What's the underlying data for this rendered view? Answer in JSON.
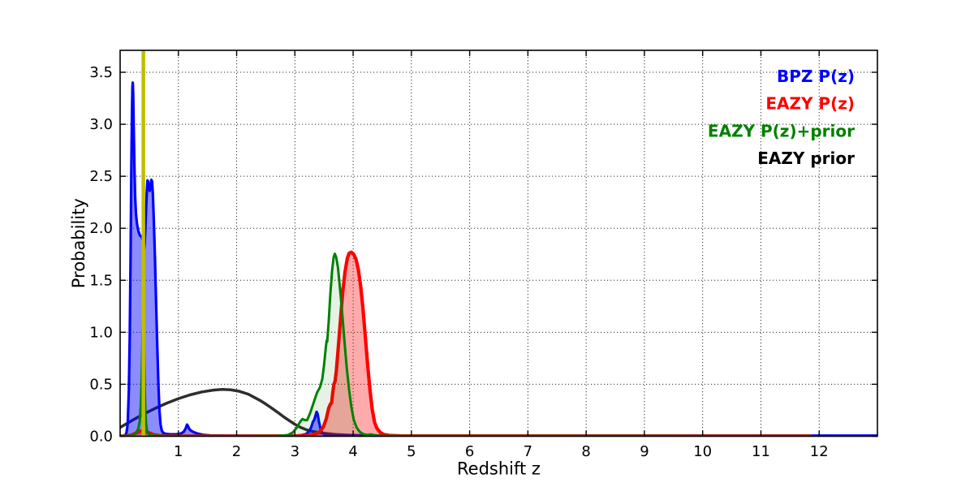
{
  "figure": {
    "background": "#ffffff",
    "border_color": "#000000",
    "grid_color": "#333333"
  },
  "chart_data": {
    "type": "line",
    "title": "",
    "xlabel": "Redshift z",
    "ylabel": "Probability",
    "xlim": [
      0,
      13
    ],
    "ylim": [
      0,
      3.711
    ],
    "grid": {
      "show": true,
      "style": "dotted"
    },
    "xticks": [
      1,
      2,
      3,
      4,
      5,
      6,
      7,
      8,
      9,
      10,
      11,
      12
    ],
    "xtick_labels": [
      "1",
      "2",
      "3",
      "4",
      "5",
      "6",
      "7",
      "8",
      "9",
      "10",
      "11",
      "12"
    ],
    "yticks": [
      0,
      0.5,
      1.0,
      1.5,
      2.0,
      2.5,
      3.0,
      3.5
    ],
    "ytick_labels": [
      "0.0",
      "0.5",
      "1.0",
      "1.5",
      "2.0",
      "2.5",
      "3.0",
      "3.5"
    ],
    "legend": {
      "position": "top-right",
      "entries": [
        {
          "label": "BPZ P(z)",
          "color": "#0000ff"
        },
        {
          "label": "EAZY P(z)",
          "color": "#ff0000"
        },
        {
          "label": "EAZY P(z)+prior",
          "color": "#008000"
        },
        {
          "label": "EAZY prior",
          "color": "#000000"
        }
      ]
    },
    "marker_line": {
      "x": 0.399,
      "color": "#bfbf00",
      "width": 4.5
    },
    "series": [
      {
        "name": "EAZY prior",
        "color": "#2e2e2e",
        "line_width": 3.5,
        "fill": null,
        "points": [
          [
            0.0,
            0.085
          ],
          [
            0.2,
            0.15
          ],
          [
            0.4,
            0.213
          ],
          [
            0.6,
            0.268
          ],
          [
            0.8,
            0.318
          ],
          [
            1.0,
            0.362
          ],
          [
            1.2,
            0.398
          ],
          [
            1.4,
            0.426
          ],
          [
            1.6,
            0.444
          ],
          [
            1.75,
            0.451
          ],
          [
            1.9,
            0.447
          ],
          [
            2.05,
            0.432
          ],
          [
            2.2,
            0.405
          ],
          [
            2.3,
            0.375
          ],
          [
            2.4,
            0.345
          ],
          [
            2.5,
            0.31
          ],
          [
            2.6,
            0.272
          ],
          [
            2.7,
            0.232
          ],
          [
            2.8,
            0.19
          ],
          [
            2.9,
            0.152
          ],
          [
            3.0,
            0.115
          ],
          [
            3.1,
            0.085
          ],
          [
            3.2,
            0.062
          ],
          [
            3.3,
            0.047
          ],
          [
            3.4,
            0.036
          ],
          [
            3.55,
            0.026
          ],
          [
            3.7,
            0.018
          ],
          [
            3.9,
            0.012
          ],
          [
            4.1,
            0.009
          ],
          [
            4.4,
            0.006
          ],
          [
            4.8,
            0.004
          ],
          [
            5.3,
            0.003
          ],
          [
            6.0,
            0.002
          ],
          [
            7.5,
            0.001
          ],
          [
            11.85,
            0.001
          ]
        ]
      },
      {
        "name": "BPZ P(z)",
        "color": "#0000ff",
        "line_width": 3.2,
        "fill": "rgba(0,0,255,0.45)",
        "points": [
          [
            0.0,
            0.002
          ],
          [
            0.06,
            0.004
          ],
          [
            0.09,
            0.012
          ],
          [
            0.11,
            0.035
          ],
          [
            0.13,
            0.12
          ],
          [
            0.15,
            0.45
          ],
          [
            0.165,
            0.95
          ],
          [
            0.18,
            1.75
          ],
          [
            0.193,
            2.6
          ],
          [
            0.203,
            3.1
          ],
          [
            0.211,
            3.36
          ],
          [
            0.217,
            3.4
          ],
          [
            0.224,
            3.3
          ],
          [
            0.233,
            3.0
          ],
          [
            0.245,
            2.6
          ],
          [
            0.258,
            2.3
          ],
          [
            0.272,
            2.14
          ],
          [
            0.29,
            2.04
          ],
          [
            0.315,
            1.97
          ],
          [
            0.34,
            1.93
          ],
          [
            0.365,
            1.92
          ],
          [
            0.388,
            1.89
          ],
          [
            0.4,
            1.84
          ],
          [
            0.41,
            1.8
          ],
          [
            0.42,
            1.85
          ],
          [
            0.432,
            1.99
          ],
          [
            0.445,
            2.18
          ],
          [
            0.458,
            2.35
          ],
          [
            0.47,
            2.46
          ],
          [
            0.48,
            2.45
          ],
          [
            0.493,
            2.39
          ],
          [
            0.508,
            2.36
          ],
          [
            0.522,
            2.41
          ],
          [
            0.536,
            2.465
          ],
          [
            0.549,
            2.45
          ],
          [
            0.562,
            2.33
          ],
          [
            0.578,
            2.08
          ],
          [
            0.597,
            1.73
          ],
          [
            0.617,
            1.3
          ],
          [
            0.637,
            0.88
          ],
          [
            0.657,
            0.5
          ],
          [
            0.676,
            0.24
          ],
          [
            0.695,
            0.11
          ],
          [
            0.715,
            0.055
          ],
          [
            0.74,
            0.032
          ],
          [
            0.78,
            0.024
          ],
          [
            0.86,
            0.019
          ],
          [
            0.96,
            0.019
          ],
          [
            1.04,
            0.026
          ],
          [
            1.09,
            0.042
          ],
          [
            1.125,
            0.075
          ],
          [
            1.148,
            0.112
          ],
          [
            1.163,
            0.1
          ],
          [
            1.185,
            0.072
          ],
          [
            1.22,
            0.052
          ],
          [
            1.27,
            0.038
          ],
          [
            1.33,
            0.026
          ],
          [
            1.42,
            0.014
          ],
          [
            1.55,
            0.008
          ],
          [
            1.8,
            0.006
          ],
          [
            2.4,
            0.005
          ],
          [
            2.95,
            0.006
          ],
          [
            3.1,
            0.009
          ],
          [
            3.19,
            0.02
          ],
          [
            3.25,
            0.05
          ],
          [
            3.285,
            0.095
          ],
          [
            3.31,
            0.14
          ],
          [
            3.33,
            0.155
          ],
          [
            3.355,
            0.2
          ],
          [
            3.372,
            0.235
          ],
          [
            3.39,
            0.215
          ],
          [
            3.415,
            0.135
          ],
          [
            3.443,
            0.065
          ],
          [
            3.47,
            0.032
          ],
          [
            3.51,
            0.015
          ],
          [
            3.58,
            0.009
          ],
          [
            3.75,
            0.007
          ],
          [
            4.5,
            0.006
          ],
          [
            13.0,
            0.006
          ]
        ]
      },
      {
        "name": "EAZY P(z)",
        "color": "#ff0000",
        "line_width": 4.2,
        "fill": "rgba(255,0,0,0.33)",
        "points": [
          [
            0.0,
            0.001
          ],
          [
            0.12,
            0.003
          ],
          [
            0.2,
            0.012
          ],
          [
            0.26,
            0.028
          ],
          [
            0.31,
            0.042
          ],
          [
            0.36,
            0.052
          ],
          [
            0.41,
            0.053
          ],
          [
            0.46,
            0.042
          ],
          [
            0.52,
            0.028
          ],
          [
            0.58,
            0.015
          ],
          [
            0.66,
            0.007
          ],
          [
            0.78,
            0.003
          ],
          [
            1.0,
            0.002
          ],
          [
            2.5,
            0.002
          ],
          [
            3.05,
            0.004
          ],
          [
            3.2,
            0.008
          ],
          [
            3.32,
            0.018
          ],
          [
            3.42,
            0.04
          ],
          [
            3.49,
            0.09
          ],
          [
            3.54,
            0.17
          ],
          [
            3.58,
            0.27
          ],
          [
            3.61,
            0.31
          ],
          [
            3.63,
            0.32
          ],
          [
            3.65,
            0.42
          ],
          [
            3.67,
            0.5
          ],
          [
            3.69,
            0.53
          ],
          [
            3.71,
            0.62
          ],
          [
            3.74,
            0.82
          ],
          [
            3.78,
            1.1
          ],
          [
            3.82,
            1.38
          ],
          [
            3.86,
            1.58
          ],
          [
            3.9,
            1.71
          ],
          [
            3.93,
            1.76
          ],
          [
            3.97,
            1.77
          ],
          [
            4.01,
            1.75
          ],
          [
            4.05,
            1.7
          ],
          [
            4.09,
            1.6
          ],
          [
            4.13,
            1.44
          ],
          [
            4.17,
            1.22
          ],
          [
            4.21,
            0.95
          ],
          [
            4.25,
            0.68
          ],
          [
            4.29,
            0.44
          ],
          [
            4.33,
            0.25
          ],
          [
            4.37,
            0.13
          ],
          [
            4.41,
            0.075
          ],
          [
            4.46,
            0.04
          ],
          [
            4.52,
            0.018
          ],
          [
            4.62,
            0.008
          ],
          [
            4.85,
            0.003
          ],
          [
            11.85,
            0.002
          ]
        ]
      },
      {
        "name": "EAZY P(z)+prior",
        "color": "#008000",
        "line_width": 3.0,
        "fill": "rgba(0,128,0,0.10)",
        "points": [
          [
            0.0,
            0.002
          ],
          [
            0.15,
            0.004
          ],
          [
            0.22,
            0.012
          ],
          [
            0.27,
            0.03
          ],
          [
            0.31,
            0.07
          ],
          [
            0.335,
            0.14
          ],
          [
            0.355,
            0.3
          ],
          [
            0.37,
            0.55
          ],
          [
            0.382,
            0.9
          ],
          [
            0.39,
            1.14
          ],
          [
            0.397,
            1.23
          ],
          [
            0.404,
            1.1
          ],
          [
            0.413,
            0.78
          ],
          [
            0.423,
            0.45
          ],
          [
            0.433,
            0.24
          ],
          [
            0.445,
            0.12
          ],
          [
            0.46,
            0.06
          ],
          [
            0.48,
            0.028
          ],
          [
            0.52,
            0.012
          ],
          [
            0.6,
            0.006
          ],
          [
            0.8,
            0.003
          ],
          [
            1.2,
            0.002
          ],
          [
            2.2,
            0.002
          ],
          [
            2.7,
            0.004
          ],
          [
            2.88,
            0.012
          ],
          [
            2.96,
            0.035
          ],
          [
            3.03,
            0.08
          ],
          [
            3.09,
            0.14
          ],
          [
            3.13,
            0.166
          ],
          [
            3.17,
            0.155
          ],
          [
            3.21,
            0.155
          ],
          [
            3.26,
            0.22
          ],
          [
            3.32,
            0.32
          ],
          [
            3.38,
            0.42
          ],
          [
            3.43,
            0.47
          ],
          [
            3.47,
            0.55
          ],
          [
            3.5,
            0.68
          ],
          [
            3.53,
            0.85
          ],
          [
            3.545,
            0.92
          ],
          [
            3.555,
            0.91
          ],
          [
            3.58,
            1.1
          ],
          [
            3.61,
            1.38
          ],
          [
            3.64,
            1.6
          ],
          [
            3.665,
            1.72
          ],
          [
            3.685,
            1.755
          ],
          [
            3.71,
            1.72
          ],
          [
            3.74,
            1.62
          ],
          [
            3.77,
            1.45
          ],
          [
            3.81,
            1.2
          ],
          [
            3.85,
            0.92
          ],
          [
            3.89,
            0.66
          ],
          [
            3.93,
            0.45
          ],
          [
            3.97,
            0.28
          ],
          [
            4.01,
            0.16
          ],
          [
            4.06,
            0.085
          ],
          [
            4.11,
            0.045
          ],
          [
            4.17,
            0.022
          ],
          [
            4.24,
            0.013
          ],
          [
            4.3,
            0.018
          ],
          [
            4.36,
            0.012
          ],
          [
            4.45,
            0.005
          ],
          [
            4.7,
            0.003
          ],
          [
            11.85,
            0.002
          ]
        ]
      }
    ]
  }
}
